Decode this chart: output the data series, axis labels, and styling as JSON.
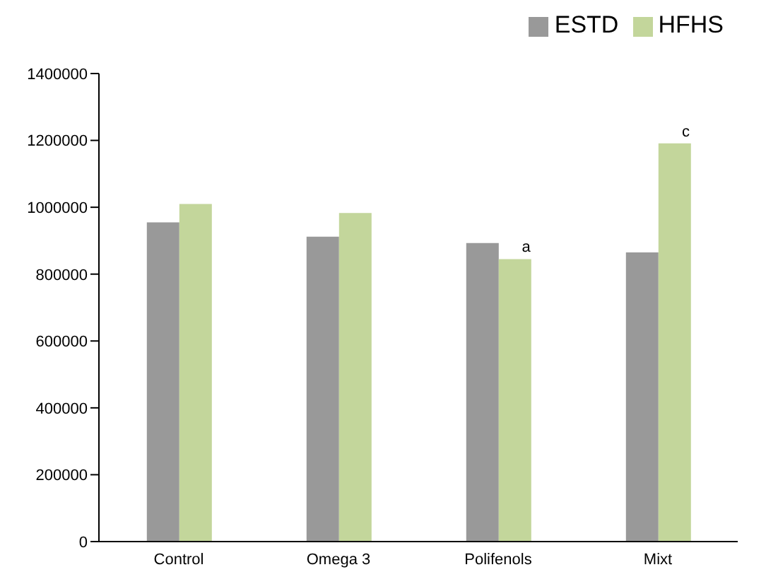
{
  "chart_data": {
    "type": "bar",
    "categories": [
      "Control",
      "Omega 3",
      "Polifenols",
      "Mixt"
    ],
    "series": [
      {
        "name": "ESTD",
        "color": "#999999",
        "values": [
          955000,
          912000,
          893000,
          865000
        ]
      },
      {
        "name": "HFHS",
        "color": "#c3d69b",
        "values": [
          1010000,
          983000,
          845000,
          1191000
        ]
      }
    ],
    "ylim": [
      0,
      1400000
    ],
    "yticks": [
      0,
      200000,
      400000,
      600000,
      800000,
      1000000,
      1200000,
      1400000
    ],
    "grid": false,
    "legend": "top right",
    "annotations": [
      {
        "text": "a",
        "x": "Polifenols",
        "y": 845000
      },
      {
        "text": "c",
        "x": "Mixt",
        "y": 1191000
      }
    ]
  }
}
